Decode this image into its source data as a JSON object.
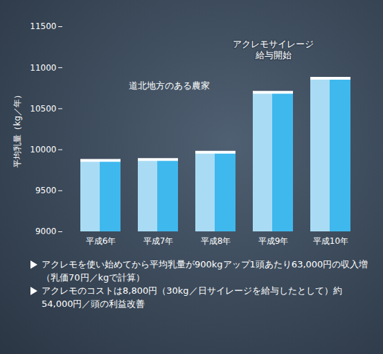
{
  "chart_data": {
    "type": "bar",
    "y_label": "平均乳量（kg／年）",
    "categories": [
      "平成6年",
      "平成7年",
      "平成8年",
      "平成9年",
      "平成10年"
    ],
    "values": [
      9870,
      9880,
      9970,
      10700,
      10870
    ],
    "color": "#3fb8ee",
    "ylim": [
      9000,
      11500
    ],
    "yticks": [
      9000,
      9500,
      10000,
      10500,
      11000,
      11500
    ],
    "grid": false,
    "annotations": [
      {
        "text": "道北地方のある農家"
      },
      {
        "lines": [
          "アクレモサイレージ",
          "給与開始"
        ],
        "category": "平成9年"
      }
    ],
    "notes": [
      "アクレモを使い始めてから平均乳量が900kgアップ1頭あたり63,000円の収入増（乳価70円／kgで計算）",
      "アクレモのコストは8,800円（30kg／日サイレージを給与したとして）約54,000円／頭の利益改善"
    ]
  }
}
